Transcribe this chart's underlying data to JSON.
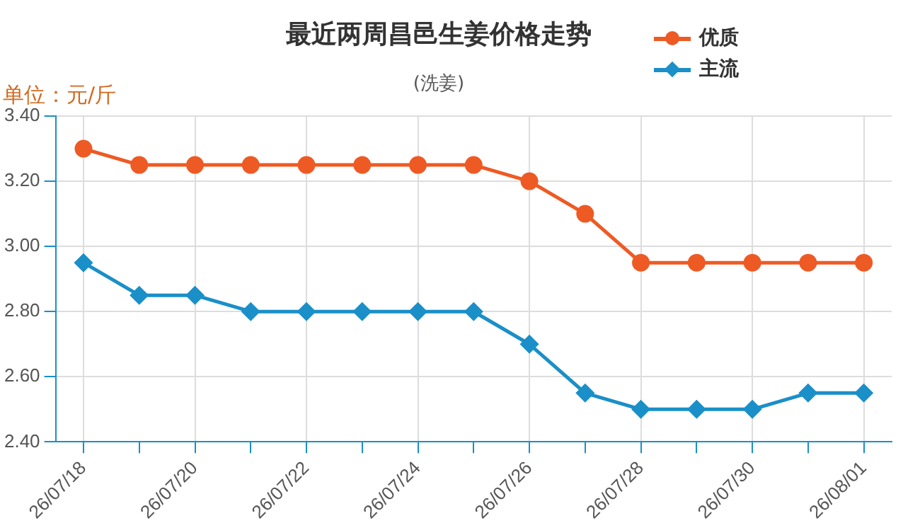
{
  "chart_data": {
    "type": "line",
    "title": "最近两周昌邑生姜价格走势",
    "subtitle": "(洗姜)",
    "annotations": [
      "单位：元/斤"
    ],
    "categories": [
      "26/07/18",
      null,
      "26/07/20",
      null,
      "26/07/22",
      null,
      "26/07/24",
      null,
      "26/07/26",
      null,
      "26/07/28",
      null,
      "26/07/30",
      null,
      "26/08/01"
    ],
    "series": [
      {
        "name": "优质",
        "color": "#ee5a24",
        "marker": "circle",
        "values": [
          3.3,
          3.25,
          3.25,
          3.25,
          3.25,
          3.25,
          3.25,
          3.25,
          3.2,
          3.1,
          2.95,
          2.95,
          2.95,
          2.95,
          2.95
        ]
      },
      {
        "name": "主流",
        "color": "#1a8fc8",
        "marker": "diamond",
        "values": [
          2.95,
          2.85,
          2.85,
          2.8,
          2.8,
          2.8,
          2.8,
          2.8,
          2.7,
          2.55,
          2.5,
          2.5,
          2.5,
          2.55,
          2.55
        ]
      }
    ],
    "ylim": [
      2.4,
      3.4
    ],
    "yticks": [
      {
        "value": 2.4,
        "label": "2.40"
      },
      {
        "value": 2.6,
        "label": "2.60"
      },
      {
        "value": 2.8,
        "label": "2.80"
      },
      {
        "value": 3.0,
        "label": "3.00"
      },
      {
        "value": 3.2,
        "label": "3.20"
      },
      {
        "value": 3.4,
        "label": "3.40"
      }
    ],
    "grid": true,
    "legend": "top right"
  }
}
